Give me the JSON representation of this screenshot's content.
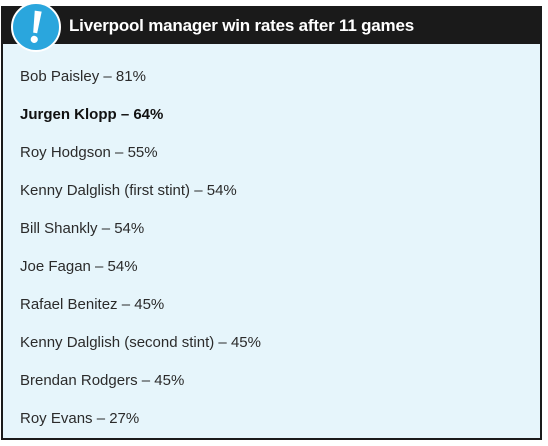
{
  "header": {
    "title": "Liverpool manager win rates after 11 games",
    "badge_icon": "exclamation-icon",
    "badge_color": "#2aa6dd",
    "bar_color": "#1a1a1a"
  },
  "list": {
    "background": "#e6f5fb",
    "items": [
      {
        "label": "Bob Paisley – 81%",
        "highlight": false
      },
      {
        "label": "Jurgen Klopp – 64%",
        "highlight": true
      },
      {
        "label": "Roy Hodgson – 55%",
        "highlight": false
      },
      {
        "label": "Kenny Dalglish (first stint) – 54%",
        "highlight": false
      },
      {
        "label": "Bill Shankly – 54%",
        "highlight": false
      },
      {
        "label": "Joe Fagan – 54%",
        "highlight": false
      },
      {
        "label": "Rafael Benitez – 45%",
        "highlight": false
      },
      {
        "label": "Kenny Dalglish (second stint) – 45%",
        "highlight": false
      },
      {
        "label": "Brendan Rodgers – 45%",
        "highlight": false
      },
      {
        "label": "Roy Evans – 27%",
        "highlight": false
      }
    ]
  }
}
